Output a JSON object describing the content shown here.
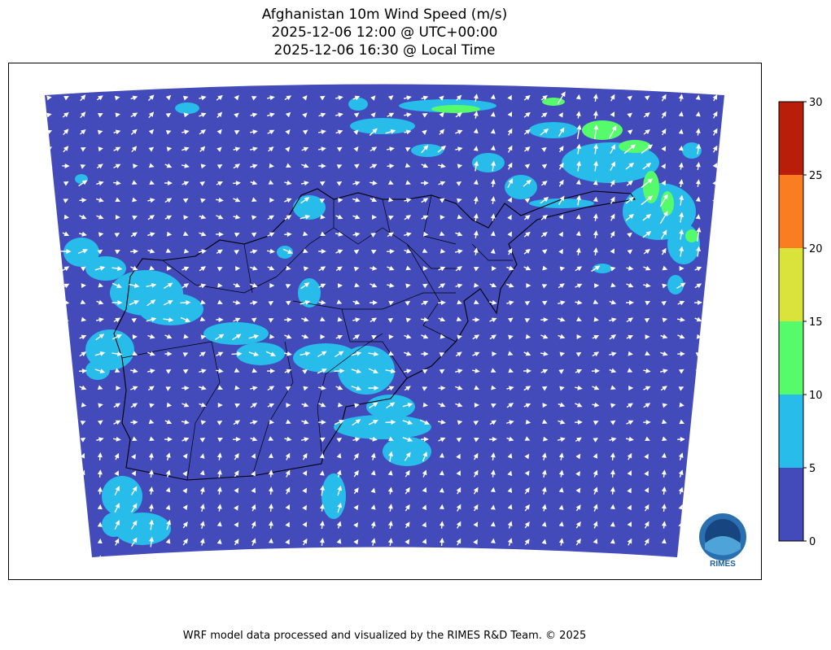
{
  "title": {
    "line1": "Afghanistan 10m Wind Speed (m/s)",
    "line2": "2025-12-06 12:00 @ UTC+00:00",
    "line3": "2025-12-06 16:30 @ Local Time"
  },
  "colorbar": {
    "min": 0,
    "max": 30,
    "levels": [
      0,
      5,
      10,
      15,
      20,
      25,
      30
    ],
    "tick_labels": [
      "0",
      "5",
      "10",
      "15",
      "20",
      "25",
      "30"
    ],
    "colors": [
      "#434ab9",
      "#28bceb",
      "#55fb6a",
      "#d9e33a",
      "#fb7d21",
      "#b81e0a"
    ]
  },
  "map": {
    "region": "Afghanistan",
    "variable": "10m wind speed",
    "background_color": "#434ab9",
    "vector_color": "#ffffff",
    "border_color": "#000000"
  },
  "logo": {
    "text": "RIMES"
  },
  "footer": "WRF model data processed and visualized by the RIMES R&D Team. © 2025"
}
